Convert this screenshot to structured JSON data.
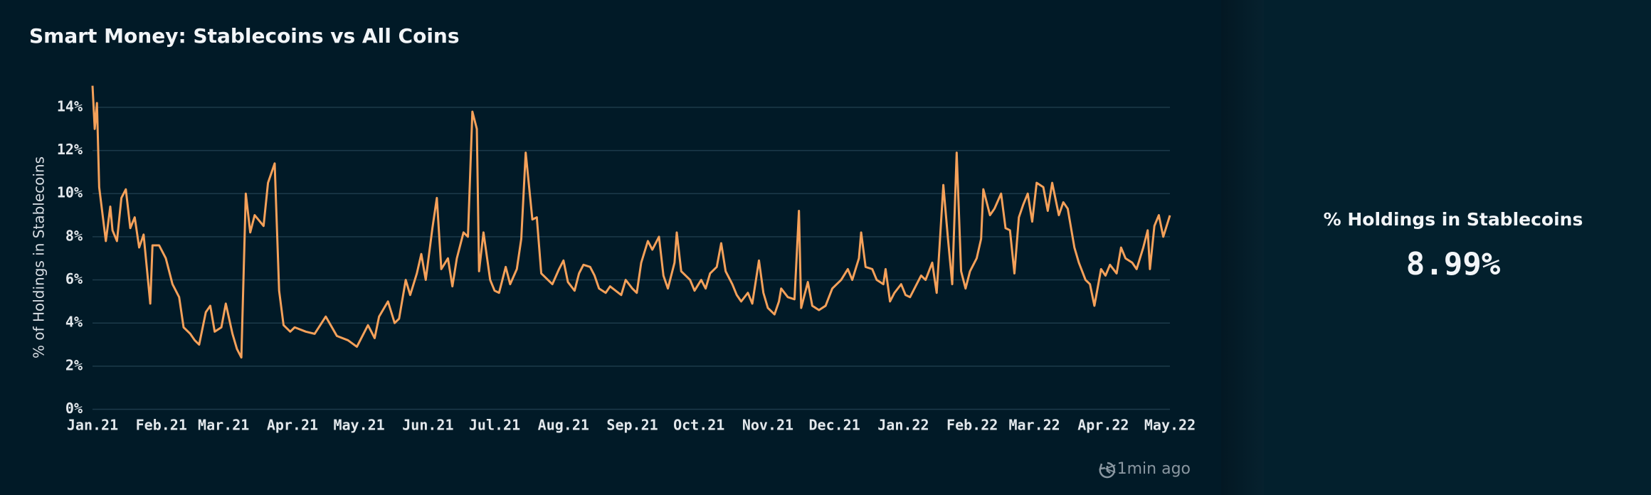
{
  "chart_data": {
    "type": "line",
    "title": "Smart Money: Stablecoins vs All Coins",
    "y_label": "% of Holdings in Stablecoins",
    "color": "#f5a15a",
    "grid": true,
    "xlim": [
      0,
      485
    ],
    "xticks": [
      {
        "value": 0,
        "label": "Jan.21"
      },
      {
        "value": 31,
        "label": "Feb.21"
      },
      {
        "value": 59,
        "label": "Mar.21"
      },
      {
        "value": 90,
        "label": "Apr.21"
      },
      {
        "value": 120,
        "label": "May.21"
      },
      {
        "value": 151,
        "label": "Jun.21"
      },
      {
        "value": 181,
        "label": "Jul.21"
      },
      {
        "value": 212,
        "label": "Aug.21"
      },
      {
        "value": 243,
        "label": "Sep.21"
      },
      {
        "value": 273,
        "label": "Oct.21"
      },
      {
        "value": 304,
        "label": "Nov.21"
      },
      {
        "value": 334,
        "label": "Dec.21"
      },
      {
        "value": 365,
        "label": "Jan.22"
      },
      {
        "value": 396,
        "label": "Feb.22"
      },
      {
        "value": 424,
        "label": "Mar.22"
      },
      {
        "value": 455,
        "label": "Apr.22"
      },
      {
        "value": 485,
        "label": "May.22"
      }
    ],
    "ylim": [
      0,
      15
    ],
    "yticks": [
      {
        "value": 0,
        "label": "0%"
      },
      {
        "value": 2,
        "label": "2%"
      },
      {
        "value": 4,
        "label": "4%"
      },
      {
        "value": 6,
        "label": "6%"
      },
      {
        "value": 8,
        "label": "8%"
      },
      {
        "value": 10,
        "label": "10%"
      },
      {
        "value": 12,
        "label": "12%"
      },
      {
        "value": 14,
        "label": "14%"
      }
    ],
    "x": [
      0,
      1,
      2,
      3,
      6,
      8,
      9,
      11,
      13,
      15,
      17,
      19,
      21,
      23,
      26,
      27,
      30,
      33,
      36,
      39,
      41,
      44,
      46,
      48,
      51,
      53,
      55,
      58,
      60,
      63,
      65,
      67,
      69,
      71,
      73,
      77,
      79,
      82,
      84,
      86,
      89,
      91,
      96,
      100,
      105,
      110,
      115,
      119,
      124,
      127,
      129,
      133,
      136,
      138,
      141,
      143,
      146,
      148,
      150,
      153,
      155,
      157,
      160,
      162,
      164,
      167,
      169,
      171,
      173,
      174,
      176,
      179,
      181,
      183,
      186,
      188,
      191,
      193,
      195,
      198,
      200,
      202,
      205,
      207,
      210,
      212,
      214,
      217,
      219,
      221,
      224,
      226,
      228,
      231,
      233,
      238,
      240,
      243,
      245,
      247,
      250,
      252,
      255,
      257,
      259,
      262,
      263,
      265,
      269,
      271,
      274,
      276,
      278,
      281,
      283,
      285,
      288,
      290,
      292,
      295,
      297,
      300,
      302,
      304,
      307,
      309,
      310,
      313,
      316,
      318,
      319,
      322,
      324,
      327,
      330,
      333,
      335,
      337,
      340,
      342,
      345,
      346,
      348,
      351,
      353,
      356,
      357,
      359,
      361,
      364,
      366,
      368,
      371,
      373,
      375,
      378,
      380,
      383,
      385,
      387,
      389,
      391,
      393,
      395,
      398,
      400,
      401,
      404,
      406,
      409,
      411,
      413,
      415,
      417,
      419,
      421,
      423,
      425,
      428,
      430,
      432,
      435,
      437,
      439,
      442,
      444,
      447,
      449,
      451,
      454,
      456,
      458,
      461,
      463,
      465,
      468,
      470,
      473,
      475,
      476,
      478,
      480,
      482,
      485
    ],
    "values": [
      15.0,
      13.0,
      14.2,
      10.3,
      7.8,
      9.4,
      8.3,
      7.8,
      9.8,
      10.2,
      8.4,
      8.9,
      7.5,
      8.1,
      4.9,
      7.6,
      7.6,
      7.0,
      5.8,
      5.2,
      3.8,
      3.5,
      3.2,
      3.0,
      4.5,
      4.8,
      3.6,
      3.8,
      4.9,
      3.5,
      2.8,
      2.4,
      10.0,
      8.2,
      9.0,
      8.5,
      10.5,
      11.4,
      5.5,
      3.9,
      3.6,
      3.8,
      3.6,
      3.5,
      4.3,
      3.4,
      3.2,
      2.9,
      3.9,
      3.3,
      4.3,
      5.0,
      4.0,
      4.2,
      6.0,
      5.3,
      6.3,
      7.2,
      6.0,
      8.4,
      9.8,
      6.5,
      7.0,
      5.7,
      7.0,
      8.2,
      8.0,
      13.8,
      13.0,
      6.4,
      8.2,
      6.0,
      5.5,
      5.4,
      6.6,
      5.8,
      6.5,
      7.9,
      11.9,
      8.8,
      8.9,
      6.3,
      6.0,
      5.8,
      6.5,
      6.9,
      5.9,
      5.5,
      6.3,
      6.7,
      6.6,
      6.2,
      5.6,
      5.4,
      5.7,
      5.3,
      6.0,
      5.6,
      5.4,
      6.8,
      7.8,
      7.4,
      8.0,
      6.2,
      5.6,
      6.8,
      8.2,
      6.4,
      6.0,
      5.5,
      6.0,
      5.6,
      6.3,
      6.6,
      7.7,
      6.4,
      5.8,
      5.3,
      5.0,
      5.4,
      4.9,
      6.9,
      5.4,
      4.7,
      4.4,
      5.0,
      5.6,
      5.2,
      5.1,
      9.2,
      4.7,
      5.9,
      4.8,
      4.6,
      4.8,
      5.6,
      5.8,
      6.0,
      6.5,
      6.0,
      7.0,
      8.2,
      6.6,
      6.5,
      6.0,
      5.8,
      6.5,
      5.0,
      5.4,
      5.8,
      5.3,
      5.2,
      5.8,
      6.2,
      6.0,
      6.8,
      5.4,
      10.4,
      8.0,
      5.8,
      11.9,
      6.4,
      5.6,
      6.4,
      7.0,
      7.9,
      10.2,
      9.0,
      9.3,
      10.0,
      8.4,
      8.3,
      6.3,
      8.9,
      9.5,
      10.0,
      8.7,
      10.5,
      10.3,
      9.2,
      10.5,
      9.0,
      9.6,
      9.3,
      7.5,
      6.8,
      6.0,
      5.8,
      4.8,
      6.5,
      6.2,
      6.7,
      6.3,
      7.5,
      7.0,
      6.8,
      6.5,
      7.5,
      8.3,
      6.5,
      8.5,
      9.0,
      8.0,
      8.99
    ]
  },
  "stat": {
    "label": "% Holdings in Stablecoins",
    "value": "8.99%"
  },
  "footer": {
    "updated": "<1min ago"
  }
}
